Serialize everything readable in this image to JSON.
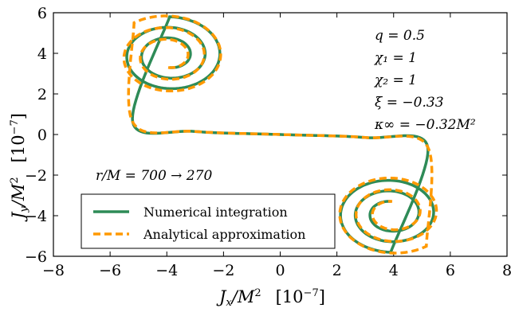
{
  "chart_data": {
    "type": "line",
    "xlabel": "J_x/M² [10⁻⁷]",
    "ylabel": "J_y/M² [10⁻⁷]",
    "xlim": [
      -8,
      8
    ],
    "ylim": [
      -6,
      6
    ],
    "xticks": [
      -8,
      -6,
      -4,
      -2,
      0,
      2,
      4,
      6,
      8
    ],
    "yticks": [
      -6,
      -4,
      -2,
      0,
      2,
      4,
      6
    ],
    "xtick_labels": [
      "−8",
      "−6",
      "−4",
      "−2",
      "0",
      "2",
      "4",
      "6",
      "8"
    ],
    "ytick_labels": [
      "−6",
      "−4",
      "−2",
      "0",
      "2",
      "4",
      "6"
    ],
    "grid": false,
    "legend_position": "lower-left",
    "annotations": {
      "range": "r/M = 700 → 270",
      "params": [
        "q = 0.5",
        "χ₁ = 1",
        "χ₂ = 1",
        "ξ = −0.33",
        "κ∞ = −0.32M²"
      ]
    },
    "series": [
      {
        "name": "Numerical integration",
        "color": "#2e8b57",
        "style": "solid",
        "spiral": {
          "center": [
            -3.9,
            3.9
          ],
          "r_outer": 1.9,
          "r_inner": 0.6,
          "turns": 2.5
        }
      },
      {
        "name": "Analytical approximation",
        "color": "#ff9900",
        "style": "dashed",
        "spiral": {
          "center": [
            -3.95,
            3.85
          ],
          "r_outer": 2.05,
          "r_inner": 0.55,
          "turns": 2.6
        }
      }
    ]
  }
}
